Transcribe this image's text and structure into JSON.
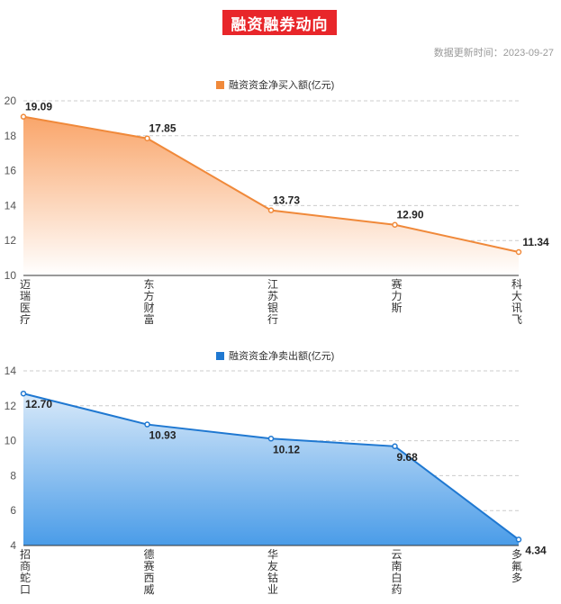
{
  "header": {
    "title": "融资融券动向",
    "update_time": "数据更新时间：2023-09-27"
  },
  "colors": {
    "title_bg": "#e8262a",
    "buy_line": "#f0893a",
    "sell_line": "#1f78d1"
  },
  "chart_data": [
    {
      "type": "area",
      "legend": "融资资金净买入额(亿元)",
      "legend_position": "top-center",
      "categories": [
        "迈瑞医疗",
        "东方财富",
        "江苏银行",
        "赛力斯",
        "科大讯飞"
      ],
      "values": [
        19.09,
        17.85,
        13.73,
        12.9,
        11.34
      ],
      "data_labels": [
        "19.09",
        "17.85",
        "13.73",
        "12.90",
        "11.34"
      ],
      "yticks": [
        10,
        12,
        14,
        16,
        18,
        20
      ],
      "ylim": [
        10,
        20
      ],
      "grid": true
    },
    {
      "type": "area",
      "legend": "融资资金净卖出额(亿元)",
      "legend_position": "top-center",
      "categories": [
        "招商蛇口",
        "德赛西威",
        "华友钴业",
        "云南白药",
        "多氟多"
      ],
      "values": [
        12.7,
        10.93,
        10.12,
        9.68,
        4.34
      ],
      "data_labels": [
        "12.70",
        "10.93",
        "10.12",
        "9.68",
        "4.34"
      ],
      "yticks": [
        4,
        6,
        8,
        10,
        12,
        14
      ],
      "ylim": [
        4,
        14
      ],
      "grid": true
    }
  ]
}
